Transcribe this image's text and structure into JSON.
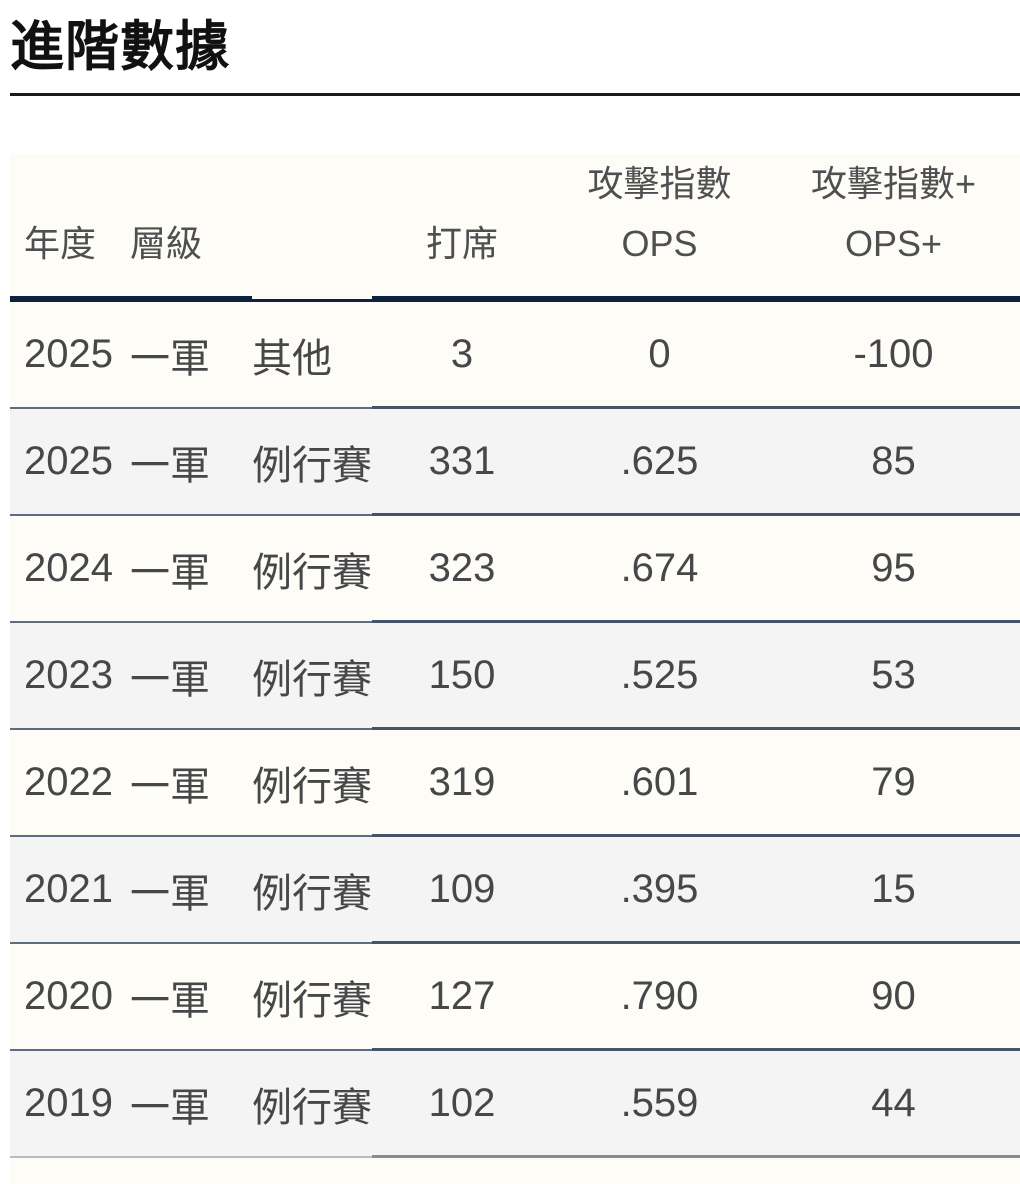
{
  "section": {
    "title": "進階數據"
  },
  "table": {
    "headers": {
      "year": "年度",
      "level": "層級",
      "gametype": "",
      "pa": "打席",
      "ops_zh": "攻擊指數",
      "ops_en": "OPS",
      "ops_plus_zh": "攻擊指數+",
      "ops_plus_en": "OPS+"
    },
    "rows": [
      {
        "year": "2025",
        "level": "一軍",
        "gametype": "其他",
        "pa": "3",
        "ops": "0",
        "ops_plus": "-100"
      },
      {
        "year": "2025",
        "level": "一軍",
        "gametype": "例行賽",
        "pa": "331",
        "ops": ".625",
        "ops_plus": "85"
      },
      {
        "year": "2024",
        "level": "一軍",
        "gametype": "例行賽",
        "pa": "323",
        "ops": ".674",
        "ops_plus": "95"
      },
      {
        "year": "2023",
        "level": "一軍",
        "gametype": "例行賽",
        "pa": "150",
        "ops": ".525",
        "ops_plus": "53"
      },
      {
        "year": "2022",
        "level": "一軍",
        "gametype": "例行賽",
        "pa": "319",
        "ops": ".601",
        "ops_plus": "79"
      },
      {
        "year": "2021",
        "level": "一軍",
        "gametype": "例行賽",
        "pa": "109",
        "ops": ".395",
        "ops_plus": "15"
      },
      {
        "year": "2020",
        "level": "一軍",
        "gametype": "例行賽",
        "pa": "127",
        "ops": ".790",
        "ops_plus": "90"
      },
      {
        "year": "2019",
        "level": "一軍",
        "gametype": "例行賽",
        "pa": "102",
        "ops": ".559",
        "ops_plus": "44"
      }
    ]
  },
  "colors": {
    "title_text": "#111111",
    "title_rule": "#1a1a1a",
    "header_text": "#4f4f52",
    "header_border_navy": "#0e2240",
    "cell_text": "#47474a",
    "row_divider_left": "#5e6c80",
    "row_divider_right": "#465469",
    "row_bg_cream": "#fdfcf7",
    "row_bg_gray": "#f4f4f5"
  }
}
